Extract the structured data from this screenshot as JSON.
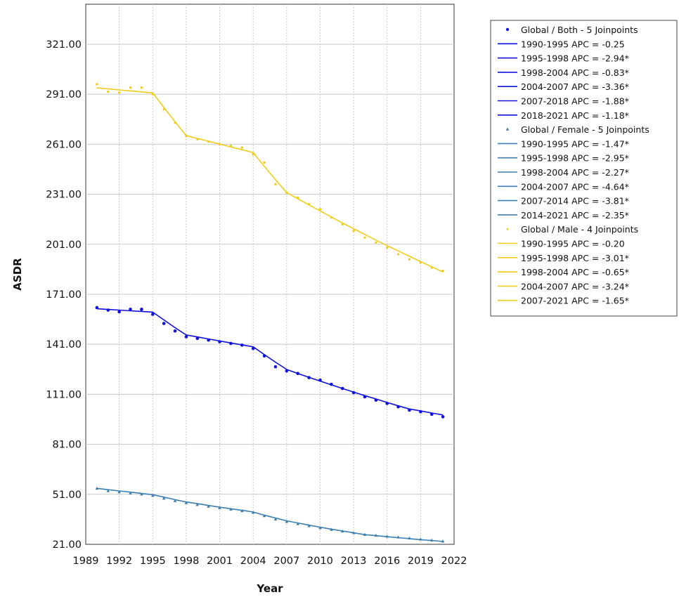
{
  "chart_data": {
    "type": "line",
    "title": "",
    "xlabel": "Year",
    "ylabel": "ASDR",
    "xlim": [
      1989,
      2022
    ],
    "ylim": [
      21,
      345
    ],
    "x_ticks": [
      1989,
      1992,
      1995,
      1998,
      2001,
      2004,
      2007,
      2010,
      2013,
      2016,
      2019,
      2022
    ],
    "x_tick_labels": [
      "1989",
      "1992",
      "1995",
      "1998",
      "2001",
      "2004",
      "2007",
      "2010",
      "2013",
      "2016",
      "2019",
      "2022"
    ],
    "y_ticks": [
      21,
      51,
      81,
      111,
      141,
      171,
      201,
      231,
      261,
      291,
      321
    ],
    "y_tick_labels": [
      "21.00",
      "51.00",
      "81.00",
      "111.00",
      "141.00",
      "171.00",
      "201.00",
      "231.00",
      "261.00",
      "291.00",
      "321.00"
    ],
    "grid": true,
    "legend_position": "right",
    "series": [
      {
        "name": "Global / Both - 5 Joinpoints",
        "color": "#1010e0",
        "marker": "dot",
        "x": [
          1990,
          1991,
          1992,
          1993,
          1994,
          1995,
          1996,
          1997,
          1998,
          1999,
          2000,
          2001,
          2002,
          2003,
          2004,
          2005,
          2006,
          2007,
          2008,
          2009,
          2010,
          2011,
          2012,
          2013,
          2014,
          2015,
          2016,
          2017,
          2018,
          2019,
          2020,
          2021
        ],
        "observed": [
          163.0,
          161.5,
          160.5,
          162.0,
          162.0,
          159.0,
          153.5,
          149.0,
          145.5,
          144.5,
          143.5,
          142.5,
          141.5,
          140.5,
          138.5,
          134.0,
          127.5,
          125.0,
          123.5,
          121.0,
          119.5,
          117.0,
          114.5,
          112.0,
          109.5,
          107.5,
          105.5,
          103.5,
          101.5,
          100.5,
          99.0,
          97.5
        ],
        "fit": [
          162.3,
          161.9,
          161.5,
          161.1,
          160.7,
          160.3,
          155.6,
          151.0,
          146.6,
          145.4,
          144.2,
          143.0,
          141.8,
          140.6,
          139.5,
          134.8,
          130.3,
          125.9,
          123.5,
          121.2,
          118.9,
          116.7,
          114.5,
          112.3,
          110.2,
          108.2,
          106.1,
          104.1,
          102.2,
          101.0,
          99.8,
          98.6
        ],
        "segments": [
          "1990-1995 APC  =  -0.25",
          "1995-1998 APC  =  -2.94*",
          "1998-2004 APC  =  -0.83*",
          "2004-2007 APC  =  -3.36*",
          "2007-2018 APC  =  -1.88*",
          "2018-2021 APC  =  -1.18*"
        ]
      },
      {
        "name": "Global / Female - 5 Joinpoints",
        "color": "#3d7eb0",
        "marker": "triangle",
        "x": [
          1990,
          1991,
          1992,
          1993,
          1994,
          1995,
          1996,
          1997,
          1998,
          1999,
          2000,
          2001,
          2002,
          2003,
          2004,
          2005,
          2006,
          2007,
          2008,
          2009,
          2010,
          2011,
          2012,
          2013,
          2014,
          2015,
          2016,
          2017,
          2018,
          2019,
          2020,
          2021
        ],
        "observed": [
          54.5,
          53.0,
          52.3,
          51.6,
          51.0,
          50.2,
          48.5,
          47.0,
          45.8,
          44.7,
          43.7,
          42.8,
          41.9,
          41.0,
          40.0,
          38.0,
          36.0,
          34.5,
          33.2,
          32.0,
          30.8,
          29.8,
          28.8,
          27.8,
          26.8,
          26.3,
          25.7,
          25.2,
          24.6,
          24.0,
          23.4,
          22.8
        ],
        "fit": [
          54.6,
          53.8,
          53.0,
          52.3,
          51.5,
          50.8,
          49.3,
          47.8,
          46.4,
          45.4,
          44.3,
          43.3,
          42.3,
          41.4,
          40.4,
          38.5,
          36.8,
          35.1,
          33.8,
          32.5,
          31.3,
          30.1,
          29.0,
          27.9,
          26.8,
          26.2,
          25.6,
          25.0,
          24.4,
          23.8,
          23.3,
          22.7
        ],
        "segments": [
          "1990-1995 APC  =  -1.47*",
          "1995-1998 APC  =  -2.95*",
          "1998-2004 APC  =  -2.27*",
          "2004-2007 APC  =  -4.64*",
          "2007-2014 APC  =  -3.81*",
          "2014-2021 APC  =  -2.35*"
        ]
      },
      {
        "name": "Global / Male - 4 Joinpoints",
        "color": "#f2cc1a",
        "marker": "dot",
        "x": [
          1990,
          1991,
          1992,
          1993,
          1994,
          1995,
          1996,
          1997,
          1998,
          1999,
          2000,
          2001,
          2002,
          2003,
          2004,
          2005,
          2006,
          2007,
          2008,
          2009,
          2010,
          2011,
          2012,
          2013,
          2014,
          2015,
          2016,
          2017,
          2018,
          2019,
          2020,
          2021
        ],
        "observed": [
          297.0,
          292.5,
          292.0,
          295.0,
          295.0,
          291.0,
          282.0,
          274.0,
          266.0,
          264.0,
          262.5,
          261.0,
          260.0,
          259.0,
          255.0,
          250.0,
          237.0,
          232.0,
          229.0,
          225.0,
          222.0,
          217.0,
          213.0,
          209.0,
          205.0,
          202.0,
          199.0,
          195.0,
          192.0,
          190.0,
          187.0,
          185.0
        ],
        "fit": [
          294.8,
          294.2,
          293.6,
          293.0,
          292.4,
          291.8,
          283.0,
          274.5,
          266.2,
          264.5,
          262.8,
          261.1,
          259.4,
          257.7,
          256.0,
          247.7,
          239.7,
          232.0,
          228.3,
          224.6,
          221.0,
          217.4,
          213.8,
          210.3,
          206.9,
          203.5,
          200.2,
          197.0,
          193.8,
          190.6,
          187.5,
          184.4
        ],
        "segments": [
          "1990-1995 APC  =  -0.20",
          "1995-1998 APC  =  -3.01*",
          "1998-2004 APC  =  -0.65*",
          "2004-2007 APC  =  -3.24*",
          "2007-2021 APC  =  -1.65*"
        ]
      }
    ]
  }
}
